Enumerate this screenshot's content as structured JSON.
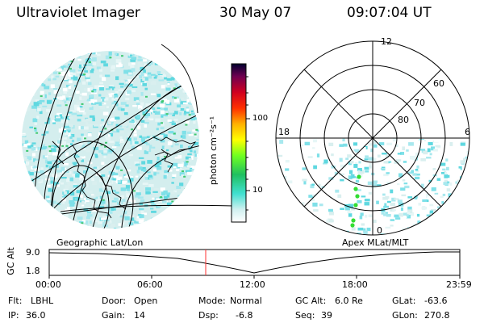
{
  "header": {
    "instrument": "Ultraviolet Imager",
    "date": "30 May 07",
    "time": "09:07:04 UT"
  },
  "colorbar": {
    "unit": "photon cm⁻²s⁻¹",
    "ticks": [
      "100",
      "10"
    ]
  },
  "polar": {
    "hour_labels": [
      "12",
      "18",
      "6",
      "0"
    ],
    "lat_labels": [
      "60",
      "70",
      "80"
    ]
  },
  "projection_labels": {
    "left": "Geographic Lat/Lon",
    "right": "Apex MLat/MLT"
  },
  "altitude_plot": {
    "ylabel": "GC Alt",
    "yticks": [
      "9.0",
      "1.8"
    ],
    "xticks": [
      "00:00",
      "06:00",
      "12:00",
      "18:00",
      "23:59"
    ],
    "marker_time": "09:07"
  },
  "status": {
    "row1": {
      "flt_label": "Flt:",
      "flt_value": "LBHL",
      "door_label": "Door:",
      "door_value": "Open",
      "mode_label": "Mode:",
      "mode_value": "Normal",
      "gcalt_label": "GC Alt:",
      "gcalt_value": "6.0 Re",
      "glat_label": "GLat:",
      "glat_value": "-63.6"
    },
    "row2": {
      "ip_label": "IP:",
      "ip_value": "36.0",
      "gain_label": "Gain:",
      "gain_value": "14",
      "dsp_label": "Dsp:",
      "dsp_value": "-6.8",
      "seq_label": "Seq:",
      "seq_value": "39",
      "glon_label": "GLon:",
      "glon_value": "270.8"
    }
  },
  "colors": {
    "noise_cyan": "#7fe0e8",
    "noise_light": "#d9efef",
    "marker_red": "#ff3030",
    "green_dots": "#33dd33"
  }
}
